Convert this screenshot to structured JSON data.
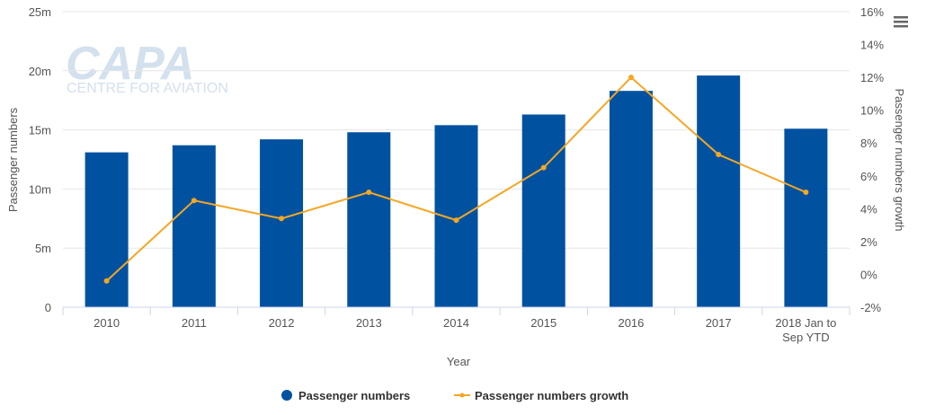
{
  "watermark": {
    "brand": "CAPA",
    "tagline": "CENTRE FOR AVIATION"
  },
  "chart_data": {
    "type": "bar",
    "categories": [
      "2010",
      "2011",
      "2012",
      "2013",
      "2014",
      "2015",
      "2016",
      "2017",
      [
        "2018 Jan to",
        "Sep YTD"
      ]
    ],
    "xlabel": "Year",
    "ylabel": "Passenger numbers",
    "y2label": "Passenger numbers growth",
    "ylim": [
      0,
      25
    ],
    "y2lim": [
      -2,
      16
    ],
    "yticks": [
      "0",
      "5m",
      "10m",
      "15m",
      "20m",
      "25m"
    ],
    "y2ticks": [
      "-2%",
      "0%",
      "2%",
      "4%",
      "6%",
      "8%",
      "10%",
      "12%",
      "14%",
      "16%"
    ],
    "grid": true,
    "legend_position": "bottom-center",
    "series": [
      {
        "name": "Passenger numbers",
        "type": "bar",
        "axis": "left",
        "unit": "million",
        "color": "#0052a0",
        "values": [
          13.1,
          13.7,
          14.2,
          14.8,
          15.4,
          16.3,
          18.3,
          19.6,
          15.1
        ]
      },
      {
        "name": "Passenger numbers growth",
        "type": "line",
        "axis": "right",
        "unit": "%",
        "color": "#f5a623",
        "values": [
          -0.4,
          4.5,
          3.4,
          5.0,
          3.3,
          6.5,
          12.0,
          7.3,
          5.0
        ]
      }
    ]
  }
}
